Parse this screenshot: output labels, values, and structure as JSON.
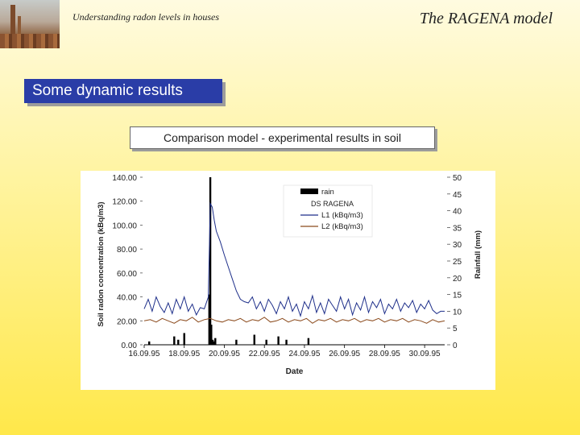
{
  "header": {
    "subtitle": "Understanding radon levels in houses",
    "title": "The RAGENA model"
  },
  "section": {
    "title": "Some dynamic results"
  },
  "caption": "Comparison model - experimental results in soil",
  "colors": {
    "accent_box": "#2a3da7",
    "rain": "#000000",
    "l1": "#1e2f8a",
    "l2": "#8b4a1c"
  },
  "chart_data": {
    "type": "line",
    "xlabel": "Date",
    "ylabel": "Soil radon concentration (kBq/m3)",
    "y2label": "Rainfall (mm)",
    "x_ticks": [
      "16.09.95",
      "18.09.95",
      "20.09.95",
      "22.09.95",
      "24.09.95",
      "26.09.95",
      "28.09.95",
      "30.09.95"
    ],
    "x_range": [
      16,
      31
    ],
    "ylim": [
      0,
      140
    ],
    "y_ticks": [
      "0.00",
      "20.00",
      "40.00",
      "60.00",
      "80.00",
      "100.00",
      "120.00",
      "140.00"
    ],
    "y2lim": [
      0,
      50
    ],
    "y2_ticks": [
      "0",
      "5",
      "10",
      "15",
      "20",
      "25",
      "30",
      "35",
      "40",
      "45",
      "50"
    ],
    "legend_title": "DS RAGENA",
    "legend_position": "top-center",
    "series": [
      {
        "name": "rain",
        "kind": "bar",
        "axis": "y2",
        "x": [
          16.25,
          17.5,
          17.7,
          18.0,
          19.25,
          19.3,
          19.35,
          19.42,
          19.48,
          19.55,
          20.6,
          21.5,
          22.1,
          22.7,
          23.1,
          24.2
        ],
        "values": [
          1.0,
          2.5,
          1.5,
          3.5,
          15,
          50,
          6,
          1.5,
          1,
          2,
          1.5,
          3,
          1.5,
          2.5,
          1.5,
          2
        ]
      },
      {
        "name": "L1 (kBq/m3)",
        "kind": "line",
        "axis": "y",
        "x": [
          16.0,
          16.2,
          16.4,
          16.6,
          16.8,
          17.0,
          17.2,
          17.4,
          17.6,
          17.8,
          18.0,
          18.2,
          18.4,
          18.6,
          18.8,
          19.0,
          19.2,
          19.3,
          19.4,
          19.5,
          19.6,
          19.8,
          20.0,
          20.2,
          20.4,
          20.6,
          20.8,
          21.0,
          21.2,
          21.4,
          21.6,
          21.8,
          22.0,
          22.2,
          22.4,
          22.6,
          22.8,
          23.0,
          23.2,
          23.4,
          23.6,
          23.8,
          24.0,
          24.2,
          24.4,
          24.6,
          24.8,
          25.0,
          25.2,
          25.4,
          25.6,
          25.8,
          26.0,
          26.2,
          26.4,
          26.6,
          26.8,
          27.0,
          27.2,
          27.4,
          27.6,
          27.8,
          28.0,
          28.2,
          28.4,
          28.6,
          28.8,
          29.0,
          29.2,
          29.4,
          29.6,
          29.8,
          30.0,
          30.2,
          30.4,
          30.6,
          30.8,
          31.0
        ],
        "values": [
          30,
          38,
          28,
          40,
          32,
          27,
          35,
          26,
          38,
          30,
          40,
          28,
          34,
          25,
          31,
          30,
          40,
          118,
          115,
          104,
          95,
          86,
          75,
          65,
          55,
          45,
          38,
          36,
          35,
          40,
          30,
          36,
          28,
          38,
          33,
          26,
          36,
          30,
          40,
          28,
          34,
          24,
          36,
          30,
          41,
          27,
          35,
          26,
          38,
          33,
          28,
          40,
          30,
          38,
          25,
          35,
          29,
          40,
          27,
          36,
          31,
          38,
          26,
          34,
          30,
          38,
          28,
          35,
          31,
          37,
          27,
          34,
          30,
          37,
          29,
          26,
          28,
          28
        ]
      },
      {
        "name": "L2 (kBq/m3)",
        "kind": "line",
        "axis": "y",
        "x": [
          16.0,
          16.3,
          16.6,
          16.9,
          17.2,
          17.5,
          17.8,
          18.1,
          18.4,
          18.7,
          19.0,
          19.3,
          19.6,
          19.9,
          20.2,
          20.5,
          20.8,
          21.1,
          21.4,
          21.7,
          22.0,
          22.3,
          22.6,
          22.9,
          23.2,
          23.5,
          23.8,
          24.1,
          24.4,
          24.7,
          25.0,
          25.3,
          25.6,
          25.9,
          26.2,
          26.5,
          26.8,
          27.1,
          27.4,
          27.7,
          28.0,
          28.3,
          28.6,
          28.9,
          29.2,
          29.5,
          29.8,
          30.1,
          30.4,
          30.7,
          31.0
        ],
        "values": [
          20,
          21,
          19,
          22,
          20,
          18,
          21,
          20,
          23,
          19,
          21,
          22,
          20,
          19,
          21,
          20,
          22,
          19,
          21,
          20,
          23,
          19,
          20,
          22,
          19,
          21,
          20,
          22,
          18,
          21,
          20,
          22,
          19,
          21,
          20,
          22,
          19,
          21,
          20,
          22,
          19,
          21,
          20,
          22,
          19,
          21,
          20,
          18,
          21,
          19,
          20
        ]
      }
    ]
  }
}
